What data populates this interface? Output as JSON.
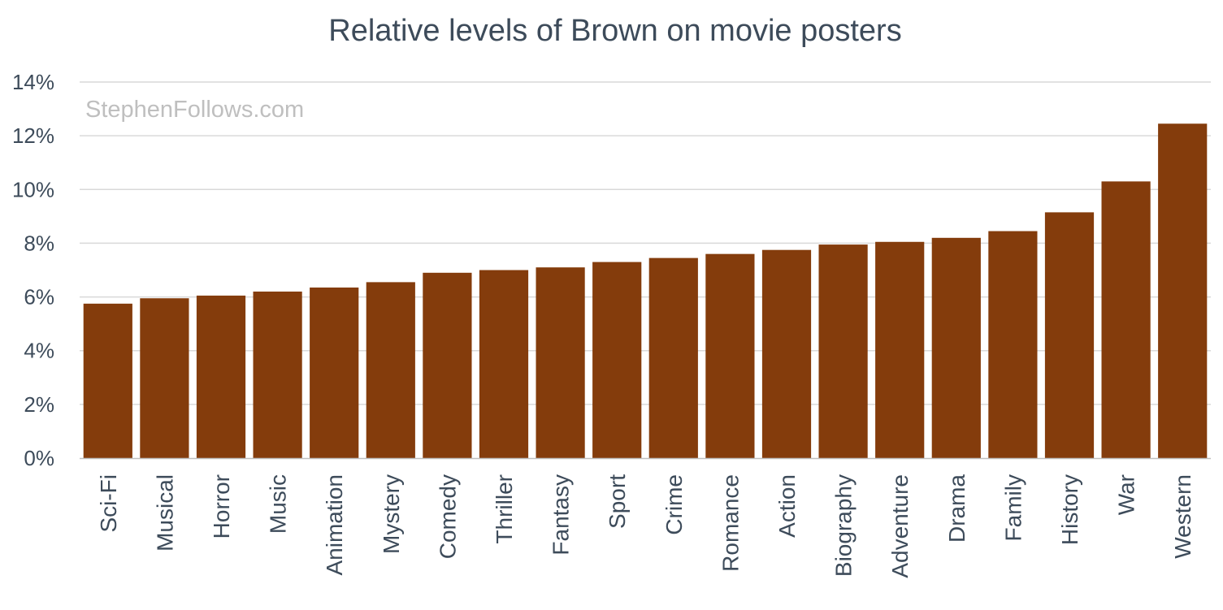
{
  "watermark": "StephenFollows.com",
  "colors": {
    "bar": "#843C0C",
    "text": "#3D4B5A",
    "grid": "#D9D9D9",
    "watermark": "#BFBFBF"
  },
  "chart_data": {
    "type": "bar",
    "title": "Relative levels of Brown on movie posters",
    "xlabel": "",
    "ylabel": "",
    "ylim": [
      0,
      14
    ],
    "yticks": [
      0,
      2,
      4,
      6,
      8,
      10,
      12,
      14
    ],
    "ytick_labels": [
      "0%",
      "2%",
      "4%",
      "6%",
      "8%",
      "10%",
      "12%",
      "14%"
    ],
    "grid": true,
    "legend": "none",
    "categories": [
      "Sci-Fi",
      "Musical",
      "Horror",
      "Music",
      "Animation",
      "Mystery",
      "Comedy",
      "Thriller",
      "Fantasy",
      "Sport",
      "Crime",
      "Romance",
      "Action",
      "Biography",
      "Adventure",
      "Drama",
      "Family",
      "History",
      "War",
      "Western"
    ],
    "values": [
      5.75,
      5.95,
      6.05,
      6.2,
      6.35,
      6.55,
      6.9,
      7.0,
      7.1,
      7.3,
      7.45,
      7.6,
      7.75,
      7.95,
      8.05,
      8.2,
      8.45,
      9.15,
      10.3,
      12.45
    ]
  }
}
